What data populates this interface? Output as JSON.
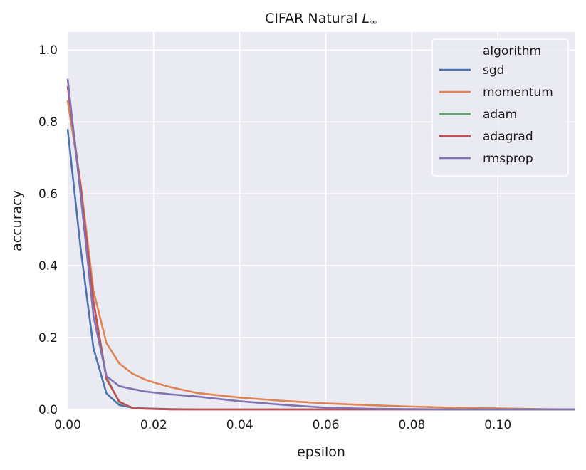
{
  "chart_data": {
    "type": "line",
    "title_prefix": "CIFAR Natural ",
    "title_math": "L",
    "title_sub": "∞",
    "xlabel": "epsilon",
    "ylabel": "accuracy",
    "xlim": [
      0.0,
      0.118
    ],
    "ylim": [
      0.0,
      1.05
    ],
    "xticks": [
      0.0,
      0.02,
      0.04,
      0.06,
      0.08,
      0.1
    ],
    "xtick_labels": [
      "0.00",
      "0.02",
      "0.04",
      "0.06",
      "0.08",
      "0.10"
    ],
    "yticks": [
      0.0,
      0.2,
      0.4,
      0.6,
      0.8,
      1.0
    ],
    "ytick_labels": [
      "0.0",
      "0.2",
      "0.4",
      "0.6",
      "0.8",
      "1.0"
    ],
    "grid": true,
    "legend_title": "algorithm",
    "legend_position": "top-right",
    "x": [
      0.0,
      0.003,
      0.006,
      0.009,
      0.012,
      0.015,
      0.018,
      0.021,
      0.024,
      0.03,
      0.04,
      0.05,
      0.06,
      0.07,
      0.08,
      0.09,
      0.1,
      0.11,
      0.118
    ],
    "series": [
      {
        "name": "sgd",
        "color": "#4c72b0",
        "values": [
          0.78,
          0.45,
          0.17,
          0.045,
          0.012,
          0.005,
          0.003,
          0.002,
          0.001,
          0.0,
          0.0,
          0.0,
          0.0,
          0.0,
          0.0,
          0.0,
          0.0,
          0.0,
          0.0
        ]
      },
      {
        "name": "momentum",
        "color": "#dd8452",
        "values": [
          0.86,
          0.63,
          0.33,
          0.185,
          0.128,
          0.1,
          0.083,
          0.072,
          0.062,
          0.046,
          0.033,
          0.024,
          0.017,
          0.012,
          0.008,
          0.005,
          0.003,
          0.001,
          0.0
        ]
      },
      {
        "name": "adam",
        "color": "#55a868",
        "values": [
          0.9,
          0.62,
          0.3,
          0.09,
          0.02,
          0.005,
          0.002,
          0.001,
          0.0,
          0.0,
          0.0,
          0.0,
          0.0,
          0.0,
          0.0,
          0.0,
          0.0,
          0.0,
          0.0
        ]
      },
      {
        "name": "adagrad",
        "color": "#c44e52",
        "values": [
          0.9,
          0.62,
          0.3,
          0.085,
          0.022,
          0.004,
          0.002,
          0.001,
          0.0,
          0.0,
          0.0,
          0.0,
          0.0,
          0.0,
          0.0,
          0.0,
          0.0,
          0.0,
          0.0
        ]
      },
      {
        "name": "rmsprop",
        "color": "#8172b3",
        "values": [
          0.92,
          0.6,
          0.26,
          0.093,
          0.065,
          0.057,
          0.05,
          0.046,
          0.042,
          0.036,
          0.023,
          0.013,
          0.005,
          0.002,
          0.001,
          0.0,
          0.0,
          0.0,
          0.0
        ]
      }
    ]
  }
}
